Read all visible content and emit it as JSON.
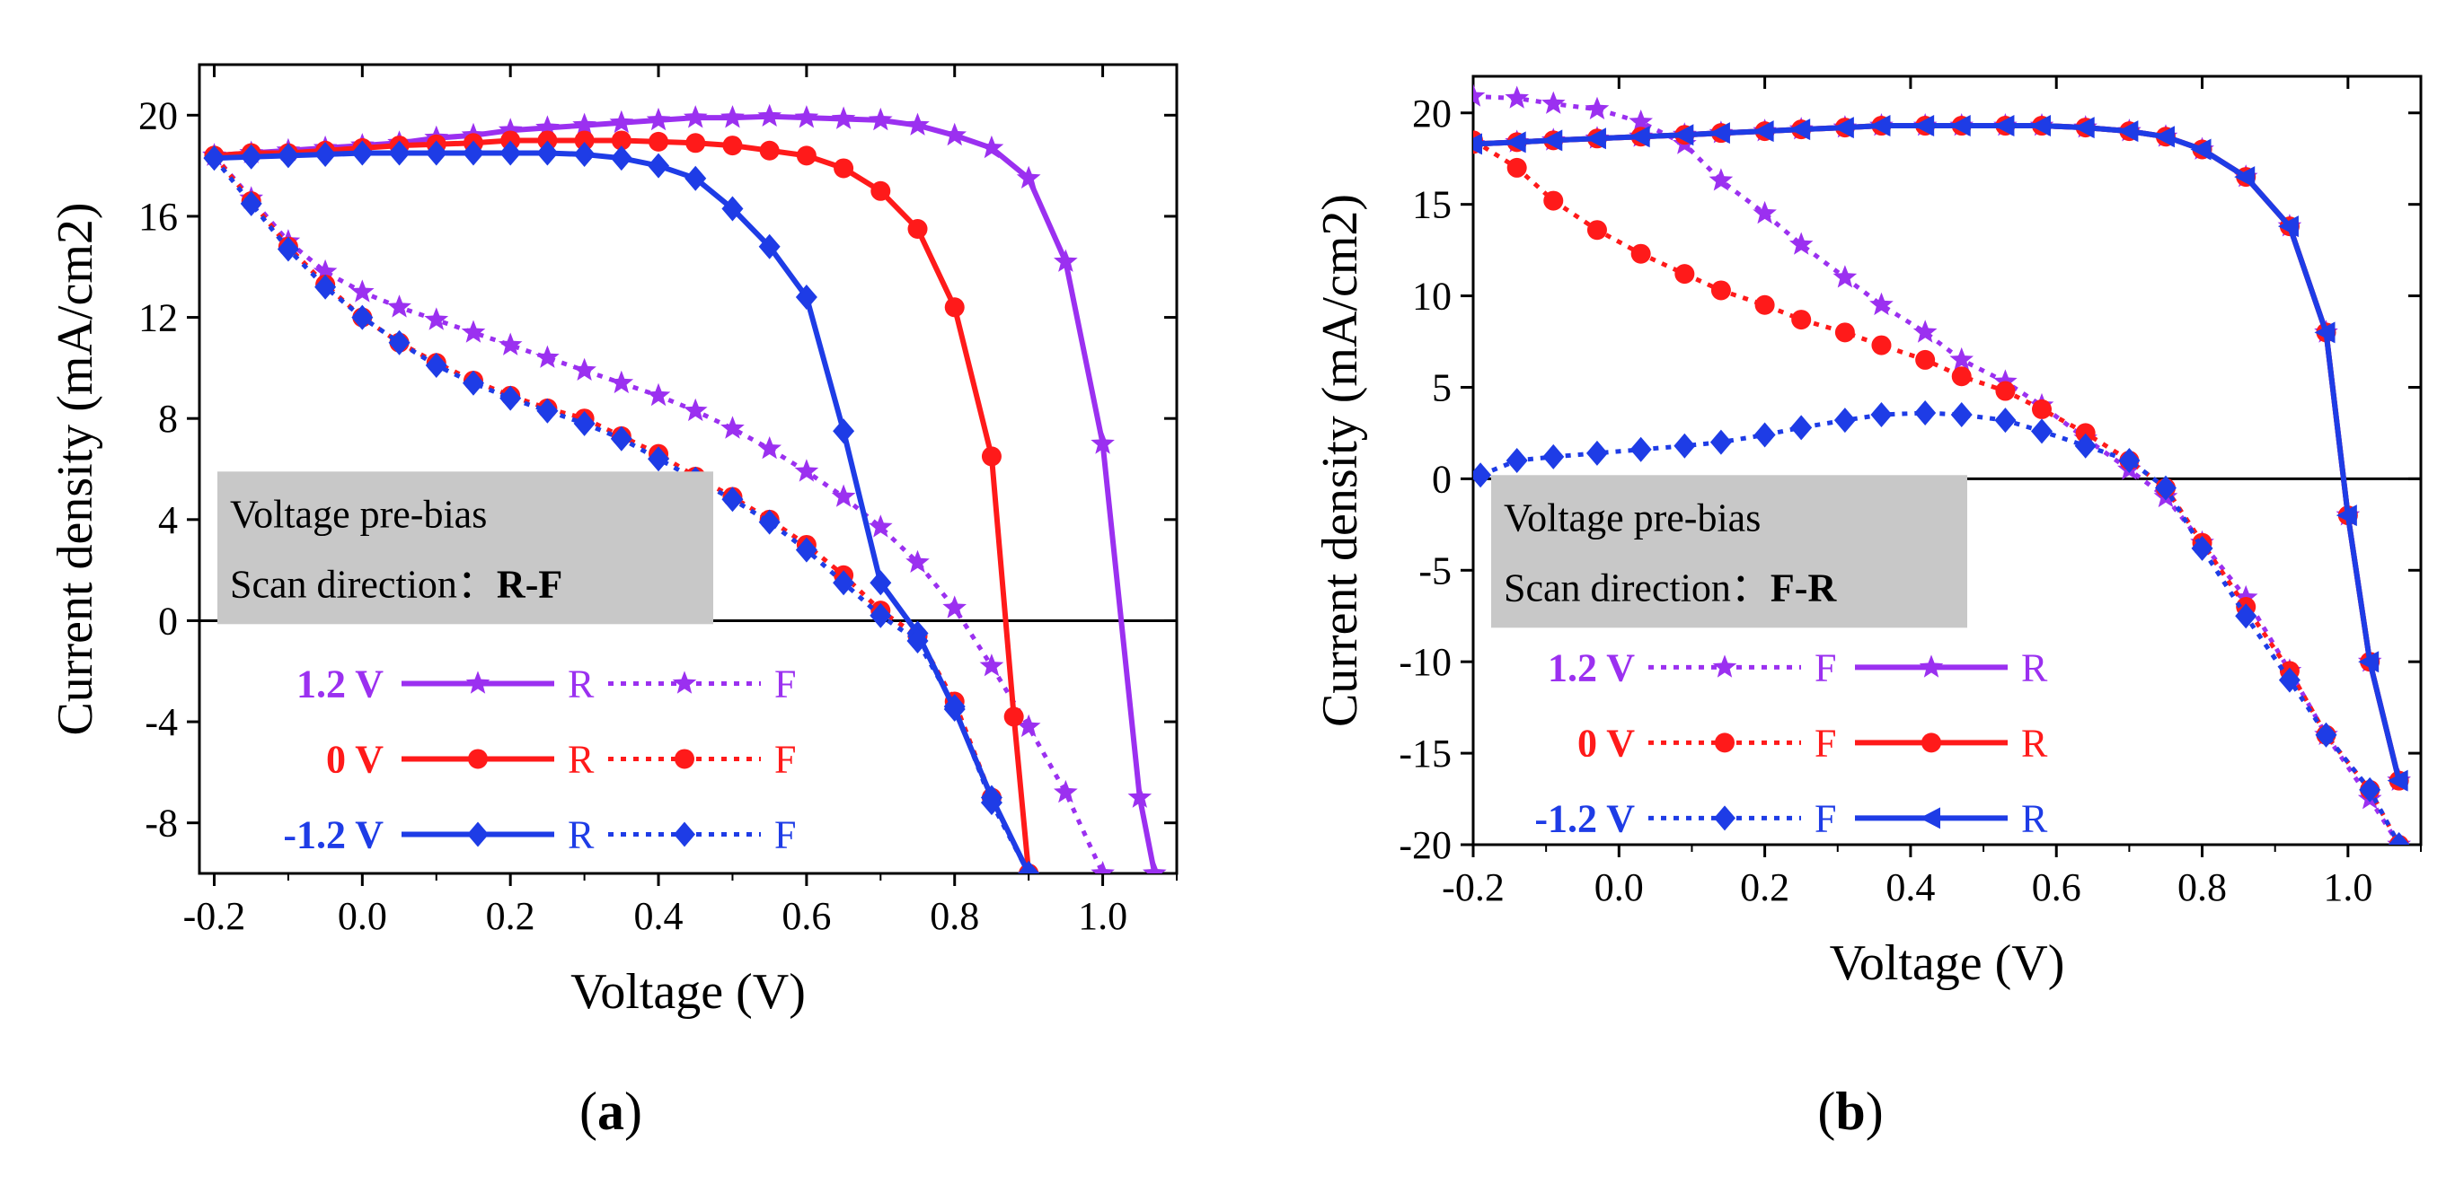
{
  "figure": {
    "panel_a_label": "a",
    "panel_b_label": "b"
  },
  "colors": {
    "purple": "#9b30f0",
    "red": "#ff1a1a",
    "blue": "#1e3ce6",
    "box": "#c8c8c8"
  },
  "chart_data": [
    {
      "type": "line",
      "panel": "a",
      "xlabel": "Voltage (V)",
      "ylabel": "Current density (mA/cm2)",
      "xlim": [
        -0.22,
        1.1
      ],
      "ylim": [
        -10,
        22
      ],
      "xticks": [
        -0.2,
        0.0,
        0.2,
        0.4,
        0.6,
        0.8,
        1.0
      ],
      "xtick_labels": [
        "-0.2",
        "0.0",
        "0.2",
        "0.4",
        "0.6",
        "0.8",
        "1.0"
      ],
      "yticks": [
        -8,
        -4,
        0,
        4,
        8,
        12,
        16,
        20
      ],
      "ytick_labels": [
        "-8",
        "-4",
        "0",
        "4",
        "8",
        "12",
        "16",
        "20"
      ],
      "zero_line": true,
      "info_box": {
        "line1": "Voltage pre-bias",
        "line2_prefix": "Scan direction：",
        "line2_bold": "R-F"
      },
      "legend": [
        {
          "bias": "1.2 V",
          "color_key": "purple",
          "marker": "star",
          "first": "R",
          "second": "F",
          "first_dashed": false
        },
        {
          "bias": "0 V",
          "color_key": "red",
          "marker": "circle",
          "first": "R",
          "second": "F",
          "first_dashed": false
        },
        {
          "bias": "-1.2 V",
          "color_key": "blue",
          "marker": "diamond",
          "first": "R",
          "second": "F",
          "first_dashed": false
        }
      ],
      "series": [
        {
          "name": "1.2 V R",
          "color_key": "purple",
          "marker": "star",
          "dashed": false,
          "x": [
            -0.2,
            -0.15,
            -0.1,
            -0.05,
            0.0,
            0.05,
            0.1,
            0.15,
            0.2,
            0.25,
            0.3,
            0.35,
            0.4,
            0.45,
            0.5,
            0.55,
            0.6,
            0.65,
            0.7,
            0.75,
            0.8,
            0.85,
            0.9,
            0.95,
            1.0,
            1.05,
            1.07
          ],
          "y": [
            18.4,
            18.5,
            18.6,
            18.7,
            18.8,
            18.9,
            19.1,
            19.2,
            19.4,
            19.5,
            19.6,
            19.7,
            19.8,
            19.9,
            19.9,
            19.95,
            19.9,
            19.85,
            19.8,
            19.6,
            19.2,
            18.7,
            17.5,
            14.2,
            7.0,
            -7.0,
            -10
          ]
        },
        {
          "name": "1.2 V F",
          "color_key": "purple",
          "marker": "star",
          "dashed": true,
          "x": [
            -0.2,
            -0.15,
            -0.1,
            -0.05,
            0.0,
            0.05,
            0.1,
            0.15,
            0.2,
            0.25,
            0.3,
            0.35,
            0.4,
            0.45,
            0.5,
            0.55,
            0.6,
            0.65,
            0.7,
            0.75,
            0.8,
            0.85,
            0.9,
            0.95,
            1.0
          ],
          "y": [
            18.4,
            16.7,
            15.0,
            13.8,
            13.0,
            12.4,
            11.9,
            11.4,
            10.9,
            10.4,
            9.9,
            9.4,
            8.9,
            8.3,
            7.6,
            6.8,
            5.9,
            4.9,
            3.7,
            2.3,
            0.5,
            -1.8,
            -4.2,
            -6.8,
            -10
          ]
        },
        {
          "name": "0 V R",
          "color_key": "red",
          "marker": "circle",
          "dashed": false,
          "x": [
            -0.2,
            -0.15,
            -0.1,
            -0.05,
            0.0,
            0.05,
            0.1,
            0.15,
            0.2,
            0.25,
            0.3,
            0.35,
            0.4,
            0.45,
            0.5,
            0.55,
            0.6,
            0.65,
            0.7,
            0.75,
            0.8,
            0.85,
            0.88,
            0.9
          ],
          "y": [
            18.4,
            18.5,
            18.5,
            18.6,
            18.7,
            18.8,
            18.85,
            18.9,
            19.0,
            19.0,
            19.0,
            19.0,
            18.95,
            18.9,
            18.8,
            18.6,
            18.4,
            17.9,
            17.0,
            15.5,
            12.4,
            6.5,
            -3.8,
            -10
          ]
        },
        {
          "name": "0 V F",
          "color_key": "red",
          "marker": "circle",
          "dashed": true,
          "x": [
            -0.2,
            -0.15,
            -0.1,
            -0.05,
            0.0,
            0.05,
            0.1,
            0.15,
            0.2,
            0.25,
            0.3,
            0.35,
            0.4,
            0.45,
            0.5,
            0.55,
            0.6,
            0.65,
            0.7,
            0.75,
            0.8,
            0.85,
            0.9
          ],
          "y": [
            18.4,
            16.6,
            14.8,
            13.3,
            12.0,
            11.0,
            10.2,
            9.5,
            8.9,
            8.4,
            8.0,
            7.3,
            6.6,
            5.7,
            4.9,
            4.0,
            3.0,
            1.8,
            0.4,
            -0.6,
            -3.2,
            -7.0,
            -10
          ]
        },
        {
          "name": "-1.2 V R",
          "color_key": "blue",
          "marker": "diamond",
          "dashed": false,
          "x": [
            -0.2,
            -0.15,
            -0.1,
            -0.05,
            0.0,
            0.05,
            0.1,
            0.15,
            0.2,
            0.25,
            0.3,
            0.35,
            0.4,
            0.45,
            0.5,
            0.55,
            0.6,
            0.65,
            0.7,
            0.75,
            0.8,
            0.85,
            0.9
          ],
          "y": [
            18.3,
            18.35,
            18.4,
            18.45,
            18.5,
            18.5,
            18.5,
            18.5,
            18.5,
            18.5,
            18.45,
            18.3,
            18.0,
            17.5,
            16.3,
            14.8,
            12.8,
            7.5,
            1.5,
            -0.5,
            -3.5,
            -7.0,
            -10
          ]
        },
        {
          "name": "-1.2 V F",
          "color_key": "blue",
          "marker": "diamond",
          "dashed": true,
          "x": [
            -0.2,
            -0.15,
            -0.1,
            -0.05,
            0.0,
            0.05,
            0.1,
            0.15,
            0.2,
            0.25,
            0.3,
            0.35,
            0.4,
            0.45,
            0.5,
            0.55,
            0.6,
            0.65,
            0.7,
            0.75,
            0.8,
            0.85,
            0.9
          ],
          "y": [
            18.3,
            16.5,
            14.7,
            13.2,
            12.0,
            11.0,
            10.1,
            9.4,
            8.8,
            8.3,
            7.8,
            7.2,
            6.4,
            5.6,
            4.8,
            3.9,
            2.8,
            1.5,
            0.2,
            -0.8,
            -3.4,
            -7.2,
            -10
          ]
        }
      ]
    },
    {
      "type": "line",
      "panel": "b",
      "xlabel": "Voltage (V)",
      "ylabel": "Current density (mA/cm2)",
      "xlim": [
        -0.2,
        1.1
      ],
      "ylim": [
        -20,
        22
      ],
      "xticks": [
        -0.2,
        0.0,
        0.2,
        0.4,
        0.6,
        0.8,
        1.0
      ],
      "xtick_labels": [
        "-0.2",
        "0.0",
        "0.2",
        "0.4",
        "0.6",
        "0.8",
        "1.0"
      ],
      "yticks": [
        -20,
        -15,
        -10,
        -5,
        0,
        5,
        10,
        15,
        20
      ],
      "ytick_labels": [
        "-20",
        "-15",
        "-10",
        "-5",
        "0",
        "5",
        "10",
        "15",
        "20"
      ],
      "zero_line": true,
      "info_box": {
        "line1": "Voltage pre-bias",
        "line2_prefix": "Scan direction：",
        "line2_bold": "F-R"
      },
      "legend": [
        {
          "bias": "1.2 V",
          "color_key": "purple",
          "marker": "star",
          "first": "F",
          "second": "R",
          "first_dashed": true
        },
        {
          "bias": "0 V",
          "color_key": "red",
          "marker": "circle",
          "first": "F",
          "second": "R",
          "first_dashed": true
        },
        {
          "bias": "-1.2 V",
          "color_key": "blue",
          "marker": "diamond",
          "first": "F",
          "second": "R",
          "first_dashed": true
        }
      ],
      "series": [
        {
          "name": "1.2 V F",
          "color_key": "purple",
          "marker": "star",
          "dashed": true,
          "x": [
            -0.2,
            -0.14,
            -0.09,
            -0.03,
            0.03,
            0.09,
            0.14,
            0.2,
            0.25,
            0.31,
            0.36,
            0.42,
            0.47,
            0.53,
            0.58,
            0.64,
            0.7,
            0.75,
            0.8,
            0.86,
            0.92,
            0.97,
            1.03,
            1.07
          ],
          "y": [
            20.9,
            20.8,
            20.5,
            20.2,
            19.5,
            18.3,
            16.3,
            14.5,
            12.8,
            11.0,
            9.5,
            8.0,
            6.5,
            5.3,
            4.0,
            2.2,
            0.5,
            -1.0,
            -3.5,
            -6.5,
            -10.5,
            -14.0,
            -17.5,
            -20
          ]
        },
        {
          "name": "1.2 V R",
          "color_key": "purple",
          "marker": "star",
          "dashed": false,
          "x": [
            -0.2,
            -0.14,
            -0.09,
            -0.03,
            0.03,
            0.09,
            0.14,
            0.2,
            0.25,
            0.31,
            0.36,
            0.42,
            0.47,
            0.53,
            0.58,
            0.64,
            0.7,
            0.75,
            0.8,
            0.86,
            0.92,
            0.97,
            1.0,
            1.03,
            1.07
          ],
          "y": [
            18.3,
            18.4,
            18.5,
            18.6,
            18.7,
            18.8,
            18.9,
            19.0,
            19.1,
            19.2,
            19.3,
            19.3,
            19.3,
            19.3,
            19.3,
            19.2,
            19.0,
            18.7,
            18.0,
            16.5,
            13.8,
            8.0,
            -2.0,
            -10.0,
            -16.5
          ]
        },
        {
          "name": "0 V F",
          "color_key": "red",
          "marker": "circle",
          "dashed": true,
          "x": [
            -0.2,
            -0.14,
            -0.09,
            -0.03,
            0.03,
            0.09,
            0.14,
            0.2,
            0.25,
            0.31,
            0.36,
            0.42,
            0.47,
            0.53,
            0.58,
            0.64,
            0.7,
            0.75,
            0.8,
            0.86,
            0.92,
            0.97,
            1.03,
            1.07
          ],
          "y": [
            18.5,
            17.0,
            15.2,
            13.6,
            12.3,
            11.2,
            10.3,
            9.5,
            8.7,
            8.0,
            7.3,
            6.5,
            5.6,
            4.8,
            3.8,
            2.5,
            1.0,
            -0.5,
            -3.5,
            -7.0,
            -10.5,
            -14.0,
            -17.0,
            -20
          ]
        },
        {
          "name": "0 V R",
          "color_key": "red",
          "marker": "circle",
          "dashed": false,
          "x": [
            -0.2,
            -0.14,
            -0.09,
            -0.03,
            0.03,
            0.09,
            0.14,
            0.2,
            0.25,
            0.31,
            0.36,
            0.42,
            0.47,
            0.53,
            0.58,
            0.64,
            0.7,
            0.75,
            0.8,
            0.86,
            0.92,
            0.97,
            1.0,
            1.03,
            1.07
          ],
          "y": [
            18.3,
            18.4,
            18.5,
            18.6,
            18.7,
            18.8,
            18.9,
            19.0,
            19.1,
            19.2,
            19.3,
            19.3,
            19.3,
            19.3,
            19.3,
            19.2,
            19.0,
            18.7,
            18.0,
            16.5,
            13.8,
            8.0,
            -2.0,
            -10.0,
            -16.5
          ]
        },
        {
          "name": "-1.2 V F",
          "color_key": "blue",
          "marker": "diamond",
          "dashed": true,
          "x": [
            -0.19,
            -0.14,
            -0.09,
            -0.03,
            0.03,
            0.09,
            0.14,
            0.2,
            0.25,
            0.31,
            0.36,
            0.42,
            0.47,
            0.53,
            0.58,
            0.64,
            0.7,
            0.75,
            0.8,
            0.86,
            0.92,
            0.97,
            1.03,
            1.07
          ],
          "y": [
            0.2,
            1.0,
            1.2,
            1.4,
            1.6,
            1.8,
            2.0,
            2.4,
            2.8,
            3.2,
            3.5,
            3.6,
            3.5,
            3.2,
            2.6,
            1.8,
            1.0,
            -0.5,
            -3.8,
            -7.5,
            -11.0,
            -14.0,
            -17.0,
            -20
          ]
        },
        {
          "name": "-1.2 V R",
          "color_key": "blue",
          "marker": "triangle-left",
          "dashed": false,
          "x": [
            -0.2,
            -0.14,
            -0.09,
            -0.03,
            0.03,
            0.09,
            0.14,
            0.2,
            0.25,
            0.31,
            0.36,
            0.42,
            0.47,
            0.53,
            0.58,
            0.64,
            0.7,
            0.75,
            0.8,
            0.86,
            0.92,
            0.97,
            1.0,
            1.03,
            1.07
          ],
          "y": [
            18.3,
            18.4,
            18.5,
            18.6,
            18.7,
            18.8,
            18.9,
            19.0,
            19.1,
            19.2,
            19.3,
            19.3,
            19.3,
            19.3,
            19.3,
            19.2,
            19.0,
            18.7,
            18.0,
            16.5,
            13.8,
            8.0,
            -2.0,
            -10.0,
            -16.5
          ]
        }
      ]
    }
  ]
}
